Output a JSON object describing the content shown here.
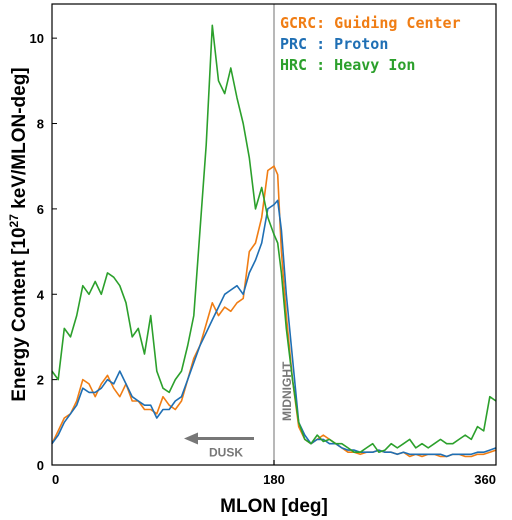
{
  "chart_data": {
    "type": "line",
    "title": "",
    "xlabel": "MLON [deg]",
    "ylabel_prefix": "Energy Content [10",
    "ylabel_exp": "27",
    "ylabel_suffix": " keV/MLON-deg]",
    "xlim": [
      0,
      360
    ],
    "ylim": [
      0,
      10.8
    ],
    "x_ticks": [
      0,
      180,
      360
    ],
    "y_ticks": [
      0,
      2,
      4,
      6,
      8,
      10
    ],
    "grid": false,
    "legend_placement": "top-right",
    "series": [
      {
        "name": "GCRC: Guiding Center",
        "color": "#f07d14",
        "x": [
          0,
          5,
          10,
          15,
          20,
          25,
          30,
          35,
          40,
          45,
          50,
          55,
          60,
          65,
          70,
          75,
          80,
          85,
          90,
          95,
          100,
          105,
          110,
          115,
          120,
          125,
          130,
          135,
          140,
          145,
          150,
          155,
          160,
          165,
          170,
          175,
          180,
          183,
          186,
          190,
          195,
          200,
          205,
          210,
          215,
          220,
          225,
          230,
          235,
          240,
          245,
          250,
          255,
          260,
          265,
          270,
          275,
          280,
          285,
          290,
          295,
          300,
          305,
          310,
          315,
          320,
          325,
          330,
          335,
          340,
          345,
          350,
          355,
          360
        ],
        "values": [
          0.5,
          0.8,
          1.1,
          1.2,
          1.5,
          2.0,
          1.9,
          1.6,
          1.9,
          2.1,
          1.8,
          1.6,
          1.9,
          1.5,
          1.5,
          1.3,
          1.3,
          1.2,
          1.6,
          1.4,
          1.3,
          1.5,
          2.0,
          2.5,
          2.8,
          3.3,
          3.8,
          3.5,
          3.7,
          3.6,
          3.8,
          3.9,
          5.0,
          5.2,
          5.8,
          6.9,
          7.0,
          6.8,
          5.0,
          3.5,
          2.0,
          0.9,
          0.6,
          0.5,
          0.6,
          0.7,
          0.6,
          0.5,
          0.4,
          0.3,
          0.3,
          0.25,
          0.3,
          0.3,
          0.35,
          0.3,
          0.3,
          0.25,
          0.3,
          0.2,
          0.25,
          0.2,
          0.25,
          0.25,
          0.2,
          0.2,
          0.25,
          0.25,
          0.2,
          0.2,
          0.25,
          0.25,
          0.3,
          0.35
        ]
      },
      {
        "name": "PRC : Proton",
        "color": "#1f6fb4",
        "x": [
          0,
          5,
          10,
          15,
          20,
          25,
          30,
          35,
          40,
          45,
          50,
          55,
          60,
          65,
          70,
          75,
          80,
          85,
          90,
          95,
          100,
          105,
          110,
          115,
          120,
          125,
          130,
          135,
          140,
          145,
          150,
          155,
          160,
          165,
          170,
          175,
          180,
          183,
          186,
          190,
          195,
          200,
          205,
          210,
          215,
          220,
          225,
          230,
          235,
          240,
          245,
          250,
          255,
          260,
          265,
          270,
          275,
          280,
          285,
          290,
          295,
          300,
          305,
          310,
          315,
          320,
          325,
          330,
          335,
          340,
          345,
          350,
          355,
          360
        ],
        "values": [
          0.5,
          0.7,
          1.0,
          1.2,
          1.4,
          1.8,
          1.7,
          1.7,
          1.8,
          2.0,
          1.9,
          2.2,
          1.9,
          1.6,
          1.5,
          1.4,
          1.4,
          1.1,
          1.3,
          1.3,
          1.5,
          1.6,
          2.0,
          2.4,
          2.8,
          3.1,
          3.4,
          3.7,
          4.0,
          4.1,
          4.2,
          4.0,
          4.5,
          4.8,
          5.2,
          6.0,
          6.1,
          6.2,
          5.5,
          4.0,
          2.5,
          1.0,
          0.7,
          0.5,
          0.6,
          0.6,
          0.5,
          0.5,
          0.4,
          0.35,
          0.35,
          0.3,
          0.3,
          0.3,
          0.35,
          0.3,
          0.3,
          0.25,
          0.3,
          0.25,
          0.25,
          0.25,
          0.25,
          0.25,
          0.25,
          0.2,
          0.25,
          0.25,
          0.25,
          0.25,
          0.3,
          0.3,
          0.35,
          0.4
        ]
      },
      {
        "name": "HRC : Heavy Ion",
        "color": "#2ca02c",
        "x": [
          0,
          5,
          10,
          15,
          20,
          25,
          30,
          35,
          40,
          45,
          50,
          55,
          60,
          65,
          70,
          75,
          80,
          85,
          90,
          95,
          100,
          105,
          110,
          115,
          120,
          125,
          130,
          135,
          140,
          145,
          150,
          155,
          160,
          165,
          170,
          175,
          180,
          183,
          186,
          190,
          195,
          200,
          205,
          210,
          215,
          220,
          225,
          230,
          235,
          240,
          245,
          250,
          255,
          260,
          265,
          270,
          275,
          280,
          285,
          290,
          295,
          300,
          305,
          310,
          315,
          320,
          325,
          330,
          335,
          340,
          345,
          350,
          355,
          360
        ],
        "values": [
          2.2,
          2.0,
          3.2,
          3.0,
          3.5,
          4.2,
          4.0,
          4.3,
          4.0,
          4.5,
          4.4,
          4.2,
          3.8,
          3.0,
          3.2,
          2.6,
          3.5,
          2.2,
          1.8,
          1.7,
          2.0,
          2.2,
          2.8,
          3.5,
          5.5,
          7.5,
          10.3,
          9.0,
          8.7,
          9.3,
          8.6,
          8.0,
          7.2,
          6.0,
          6.5,
          5.8,
          5.4,
          5.2,
          4.5,
          3.2,
          2.0,
          1.0,
          0.6,
          0.5,
          0.7,
          0.55,
          0.6,
          0.5,
          0.5,
          0.4,
          0.3,
          0.3,
          0.4,
          0.5,
          0.3,
          0.35,
          0.5,
          0.4,
          0.5,
          0.6,
          0.4,
          0.5,
          0.4,
          0.5,
          0.6,
          0.5,
          0.5,
          0.6,
          0.7,
          0.6,
          0.9,
          0.8,
          1.6,
          1.5
        ]
      }
    ],
    "annotations": {
      "midnight_label": "MIDNIGHT",
      "midnight_x": 180,
      "dusk_label": "DUSK"
    }
  }
}
